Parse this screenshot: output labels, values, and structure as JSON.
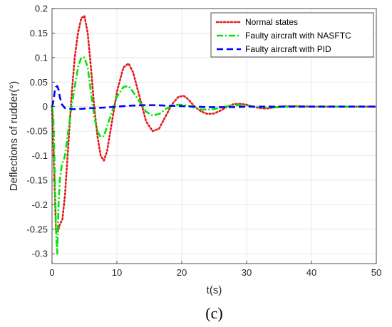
{
  "caption": "(c)",
  "chart_data": {
    "type": "line",
    "xlabel": "t(s)",
    "ylabel": "Deflections of rudder(°)",
    "xlim": [
      0,
      50
    ],
    "ylim": [
      -0.32,
      0.2
    ],
    "xticks": [
      0,
      10,
      20,
      30,
      40,
      50
    ],
    "xtick_labels": [
      "0",
      "10",
      "20",
      "30",
      "40",
      "50"
    ],
    "yticks": [
      -0.3,
      -0.25,
      -0.2,
      -0.15,
      -0.1,
      -0.05,
      0,
      0.05,
      0.1,
      0.15,
      0.2
    ],
    "ytick_labels": [
      "-0.3",
      "-0.25",
      "-0.2",
      "-0.15",
      "-0.1",
      "-0.05",
      "0",
      "0.05",
      "0.1",
      "0.15",
      "0.2"
    ],
    "grid": true,
    "legend_position": "top-right",
    "series": [
      {
        "name": "Normal states",
        "color": "#e31a1c",
        "style": "dotted",
        "x": [
          0,
          0.3,
          0.6,
          0.9,
          1.2,
          1.6,
          2.0,
          2.5,
          3.0,
          3.5,
          4.0,
          4.5,
          5.0,
          5.5,
          6.0,
          6.5,
          7.0,
          7.5,
          8.0,
          8.5,
          9.0,
          10.0,
          11.0,
          11.8,
          12.5,
          13.5,
          14.5,
          15.5,
          16.5,
          17.5,
          18.5,
          19.5,
          20.3,
          21.0,
          22.0,
          23.0,
          24.0,
          25.0,
          26.0,
          27.0,
          28.0,
          29.0,
          30.0,
          31.0,
          32.0,
          33.0,
          34.0,
          36.0,
          38.0,
          40.0,
          43.0,
          46.0,
          50.0
        ],
        "y": [
          0,
          -0.12,
          -0.25,
          -0.255,
          -0.24,
          -0.23,
          -0.18,
          -0.08,
          0.02,
          0.1,
          0.15,
          0.18,
          0.185,
          0.15,
          0.08,
          0.0,
          -0.06,
          -0.1,
          -0.11,
          -0.09,
          -0.05,
          0.03,
          0.08,
          0.088,
          0.07,
          0.02,
          -0.03,
          -0.05,
          -0.045,
          -0.02,
          0.005,
          0.02,
          0.022,
          0.015,
          0.0,
          -0.01,
          -0.015,
          -0.014,
          -0.008,
          0.0,
          0.005,
          0.006,
          0.004,
          0.0,
          -0.003,
          -0.004,
          -0.002,
          0.001,
          0.001,
          0.0,
          0.0,
          0.0,
          0.0
        ]
      },
      {
        "name": "Faulty aircraft with NASFTC",
        "color": "#00e600",
        "style": "dashdot",
        "x": [
          0,
          0.2,
          0.4,
          0.6,
          0.8,
          1.0,
          1.2,
          1.5,
          2.0,
          2.5,
          3.0,
          3.5,
          4.0,
          4.5,
          5.0,
          5.5,
          6.0,
          6.5,
          7.0,
          7.5,
          8.0,
          8.5,
          9.0,
          10.0,
          11.0,
          11.8,
          12.5,
          13.5,
          14.5,
          15.5,
          16.5,
          17.5,
          18.5,
          19.5,
          20.5,
          21.5,
          23.0,
          24.5,
          26.0,
          27.5,
          29.0,
          30.5,
          32.0,
          34.0,
          36.0,
          40.0,
          45.0,
          50.0
        ],
        "y": [
          0,
          -0.02,
          -0.12,
          -0.25,
          -0.3,
          -0.2,
          -0.15,
          -0.12,
          -0.1,
          -0.05,
          0.0,
          0.04,
          0.08,
          0.1,
          0.1,
          0.08,
          0.03,
          -0.02,
          -0.05,
          -0.062,
          -0.06,
          -0.04,
          -0.02,
          0.02,
          0.04,
          0.042,
          0.03,
          0.01,
          -0.01,
          -0.018,
          -0.015,
          -0.005,
          0.002,
          0.004,
          0.003,
          0.0,
          -0.006,
          -0.006,
          -0.002,
          0.002,
          0.003,
          0.001,
          -0.001,
          -0.002,
          0.0,
          0.0,
          0.0,
          0.0
        ]
      },
      {
        "name": "Faulty aircraft with PID",
        "color": "#0000ff",
        "style": "dashed",
        "x": [
          0,
          0.2,
          0.4,
          0.6,
          0.8,
          1.0,
          1.2,
          1.5,
          2.0,
          3.0,
          4.0,
          5.0,
          6.0,
          8.0,
          10.0,
          12.0,
          14.0,
          16.0,
          18.0,
          20.0,
          22.0,
          24.0,
          26.0,
          28.0,
          30.0,
          35.0,
          40.0,
          45.0,
          50.0
        ],
        "y": [
          0,
          0.01,
          0.03,
          0.04,
          0.042,
          0.035,
          0.02,
          0.005,
          -0.003,
          -0.005,
          -0.005,
          -0.004,
          -0.003,
          -0.002,
          0.0,
          0.002,
          0.003,
          0.003,
          0.002,
          0.001,
          0.0,
          -0.001,
          -0.001,
          -0.001,
          0.0,
          0.0,
          0.0,
          0.0,
          0.0
        ]
      }
    ]
  }
}
